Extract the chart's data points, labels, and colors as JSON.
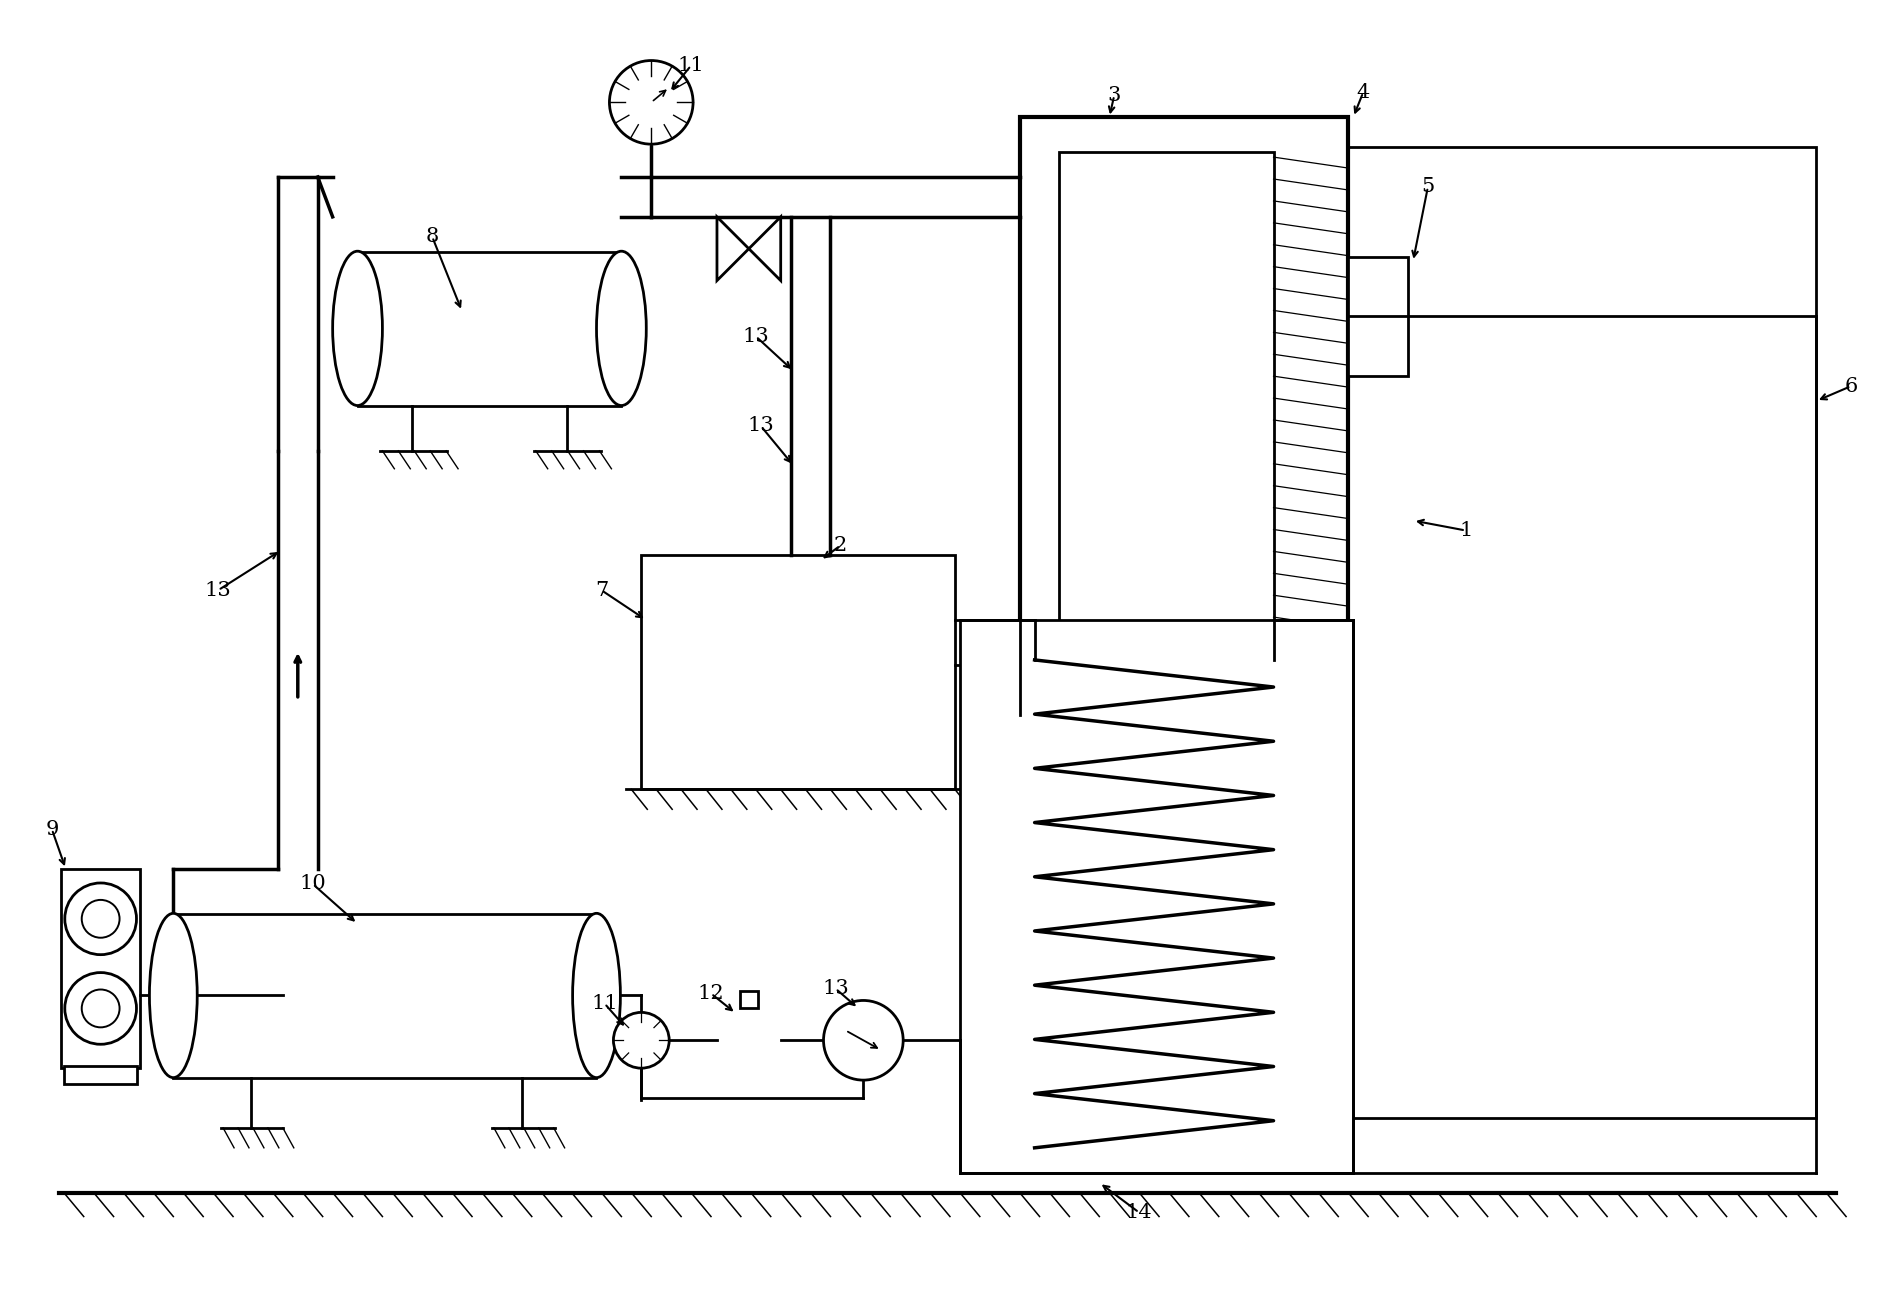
{
  "bg": "#ffffff",
  "lc": "#000000",
  "lw": 2.0,
  "lw_thick": 2.5,
  "lw_thin": 1.0,
  "fw": 18.85,
  "fh": 12.89,
  "dpi": 100
}
